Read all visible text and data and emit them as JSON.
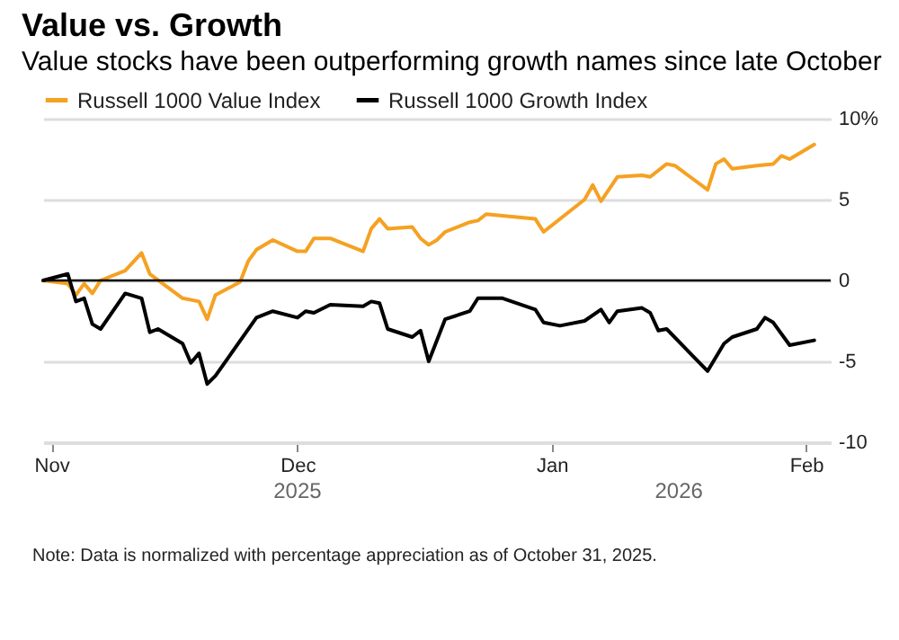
{
  "chart_data": {
    "type": "line",
    "title": "Value vs. Growth",
    "subtitle": "Value stocks have been outperforming growth names since late October",
    "x": [
      "2025-10-31",
      "2025-11-03",
      "2025-11-04",
      "2025-11-05",
      "2025-11-06",
      "2025-11-07",
      "2025-11-10",
      "2025-11-12",
      "2025-11-13",
      "2025-11-14",
      "2025-11-17",
      "2025-11-18",
      "2025-11-19",
      "2025-11-20",
      "2025-11-21",
      "2025-11-24",
      "2025-11-25",
      "2025-11-26",
      "2025-11-28",
      "2025-12-01",
      "2025-12-02",
      "2025-12-03",
      "2025-12-05",
      "2025-12-09",
      "2025-12-10",
      "2025-12-11",
      "2025-12-12",
      "2025-12-15",
      "2025-12-16",
      "2025-12-17",
      "2025-12-18",
      "2025-12-19",
      "2025-12-22",
      "2025-12-23",
      "2025-12-24",
      "2025-12-26",
      "2025-12-30",
      "2025-12-31",
      "2026-01-02",
      "2026-01-05",
      "2026-01-06",
      "2026-01-07",
      "2026-01-08",
      "2026-01-09",
      "2026-01-12",
      "2026-01-13",
      "2026-01-14",
      "2026-01-15",
      "2026-01-16",
      "2026-01-20",
      "2026-01-21",
      "2026-01-22",
      "2026-01-23",
      "2026-01-26",
      "2026-01-27",
      "2026-01-28",
      "2026-01-29",
      "2026-01-30",
      "2026-02-02"
    ],
    "series": [
      {
        "name": "Russell 1000 Value Index",
        "color": "#f5a122",
        "values": [
          0,
          -0.2,
          -0.9,
          -0.2,
          -0.8,
          0,
          0.6,
          1.7,
          0.4,
          null,
          -1.1,
          null,
          -1.3,
          -2.4,
          -0.9,
          -0.1,
          1.2,
          1.9,
          2.5,
          1.8,
          1.8,
          2.6,
          2.6,
          1.8,
          3.2,
          3.8,
          3.2,
          3.3,
          2.6,
          2.2,
          2.5,
          3.0,
          3.6,
          3.7,
          4.1,
          4.0,
          3.8,
          3.0,
          null,
          5.0,
          5.9,
          4.9,
          null,
          6.4,
          6.5,
          6.4,
          null,
          7.2,
          7.1,
          5.6,
          7.2,
          7.5,
          6.9,
          7.1,
          null,
          7.2,
          7.7,
          7.5,
          8.4
        ]
      },
      {
        "name": "Russell 1000 Growth Index",
        "color": "#000000",
        "values": [
          0,
          0.4,
          -1.3,
          -1.1,
          -2.7,
          -3.0,
          -0.8,
          -1.1,
          -3.2,
          -3.0,
          -3.9,
          -5.1,
          -4.5,
          -6.4,
          -5.9,
          null,
          null,
          -2.3,
          -1.9,
          -2.3,
          -1.9,
          -2.0,
          -1.5,
          -1.6,
          -1.3,
          -1.4,
          -3.0,
          -3.5,
          -3.1,
          -5.0,
          null,
          -2.4,
          -1.9,
          -1.1,
          null,
          -1.1,
          -1.8,
          -2.6,
          -2.8,
          -2.5,
          null,
          -1.8,
          -2.6,
          -1.9,
          -1.7,
          -2.0,
          -3.1,
          -3.0,
          null,
          -5.6,
          null,
          -3.9,
          -3.5,
          -3.0,
          -2.3,
          -2.6,
          null,
          -4.0,
          -3.7
        ]
      }
    ],
    "xlim": [
      "2025-10-31",
      "2026-02-04"
    ],
    "xticks": [
      {
        "value": "2025-11-01",
        "label": "Nov"
      },
      {
        "value": "2025-12-01",
        "label": "Dec"
      },
      {
        "value": "2026-01-01",
        "label": "Jan"
      },
      {
        "value": "2026-02-01",
        "label": "Feb"
      }
    ],
    "ylim": [
      -10,
      10
    ],
    "yticks": [
      -10,
      -5,
      0,
      5,
      {
        "value": 10,
        "label": "10%"
      }
    ],
    "grid": "y",
    "legend": "top left",
    "ref_lines": [
      {
        "axis": "y",
        "value": 0,
        "color": "#000000"
      }
    ],
    "annotations": [
      "2025",
      "2026",
      "Note: Data is normalized with percentage appreciation as of October 31, 2025."
    ]
  }
}
